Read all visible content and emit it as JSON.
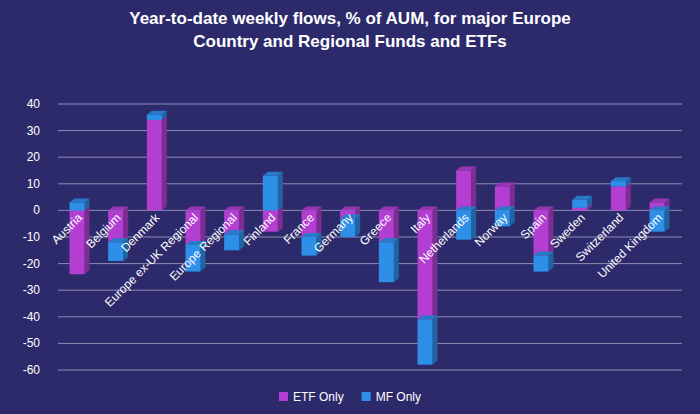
{
  "chart_data": {
    "type": "bar",
    "title": "Year-to-date weekly flows, % of AUM, for major Europe Country and Regional Funds and ETFs",
    "categories": [
      "Austria",
      "Belgium",
      "Denmark",
      "Europe ex-UK Regional",
      "Europe Regional",
      "Finland",
      "France",
      "Germany",
      "Greece",
      "Italy",
      "Netherlands",
      "Norway",
      "Spain",
      "Sweden",
      "Switzerland",
      "United Kingdom"
    ],
    "series": [
      {
        "name": "ETF Only",
        "color": "#b23fd1",
        "values": [
          -24,
          -12,
          34,
          -13,
          -9,
          -8,
          -10,
          -3,
          -12,
          -41,
          15,
          9,
          -17,
          1,
          9,
          3
        ]
      },
      {
        "name": "MF Only",
        "color": "#2e8fe8",
        "values": [
          3,
          -7,
          2,
          -10,
          -6,
          13,
          -7,
          -7,
          -15,
          -17,
          -11,
          -6,
          -6,
          3,
          2,
          -8
        ]
      }
    ],
    "ylim": [
      -60,
      40
    ],
    "yticks": [
      -60,
      -50,
      -40,
      -30,
      -20,
      -10,
      0,
      10,
      20,
      30,
      40
    ],
    "stacked": true,
    "grid": true,
    "legend": "bottom"
  }
}
